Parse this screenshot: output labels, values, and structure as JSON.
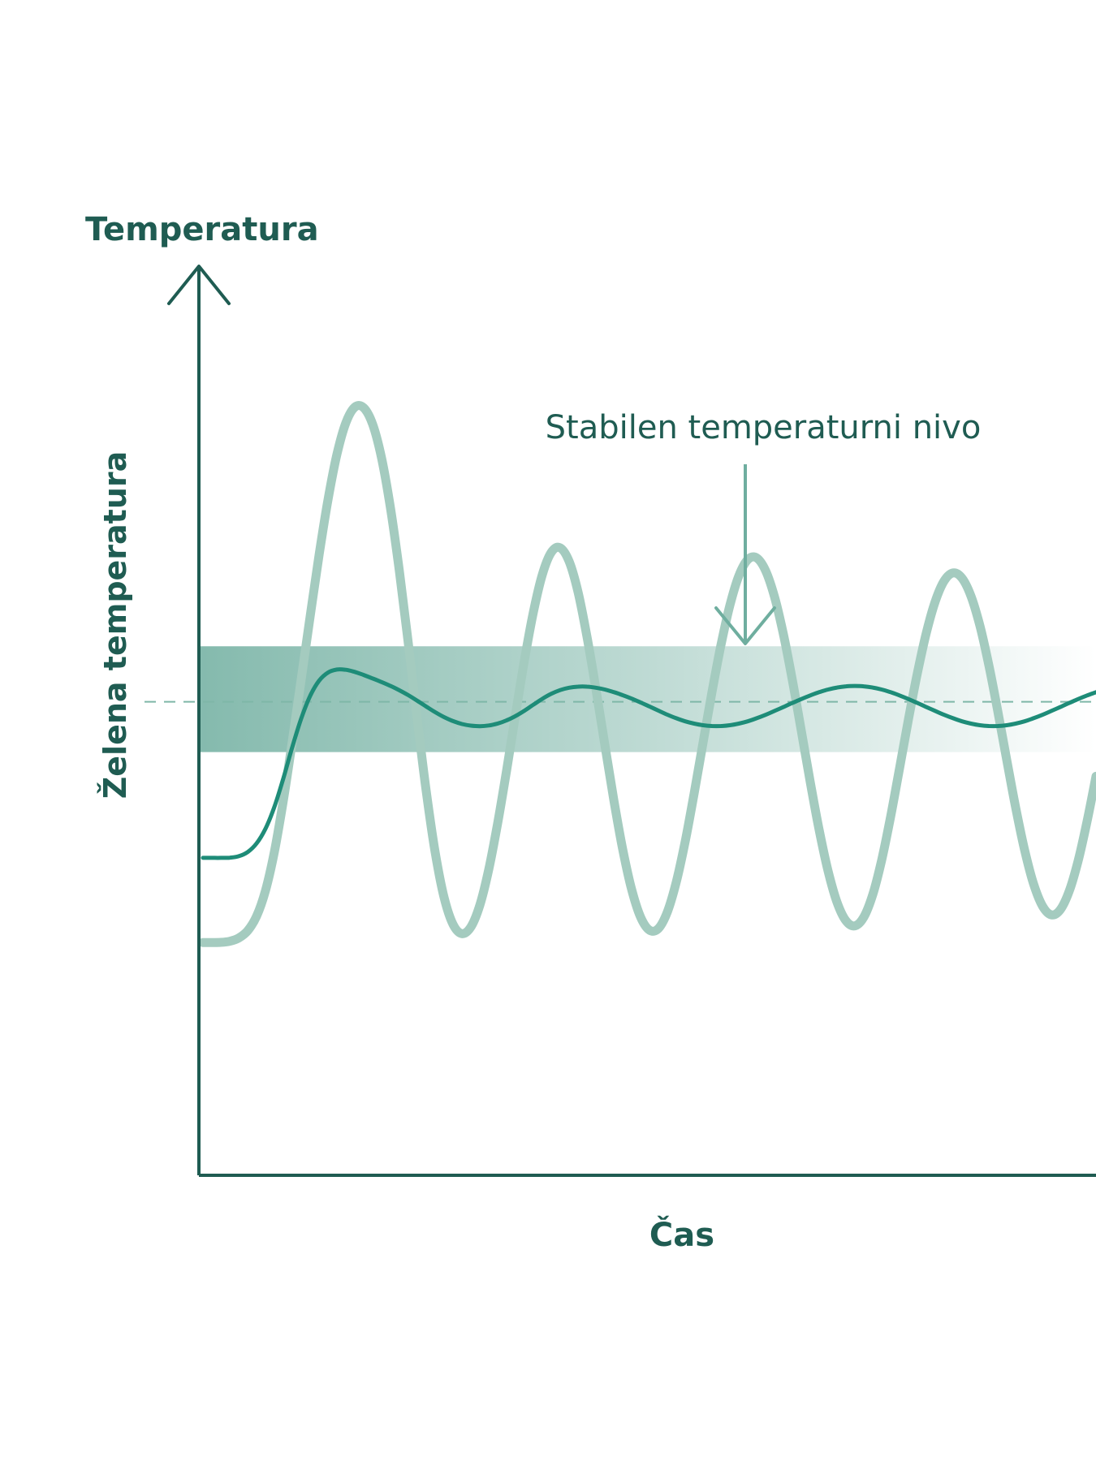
{
  "colors": {
    "axis": "#1f5c52",
    "label": "#1f5c52",
    "primary_line": "#1e8c78",
    "oscillating_line": "#a4cbbf",
    "band": "#6fae9f",
    "target_dash": "#7fb7a8",
    "annotation_arrow": "#6fae9f",
    "background": "#ffffff"
  },
  "chart_data": {
    "type": "line",
    "title": "",
    "ylabel": "Temperatura",
    "xlabel": "Čas",
    "y_reference_label": "Želena temperatura",
    "annotation": {
      "text": "Stabilen temperaturni nivo",
      "arrow_direction": "down"
    },
    "axis_ticks": false,
    "grid": false,
    "legend": "none",
    "x": [
      0,
      1,
      2,
      3,
      4,
      5,
      6,
      7,
      8,
      9,
      10,
      11,
      12,
      13,
      14,
      15,
      16,
      17,
      18,
      19,
      20,
      21,
      22,
      23,
      24,
      25,
      26,
      27,
      28,
      29,
      30,
      31,
      32,
      33,
      34,
      35,
      36,
      37,
      38,
      39,
      40,
      41,
      42,
      43,
      44,
      45,
      46,
      47,
      48,
      49,
      50,
      51,
      52,
      53,
      54,
      55,
      56,
      57,
      58,
      59,
      60,
      61,
      62,
      63,
      64,
      65,
      66,
      67,
      68,
      69,
      70,
      71,
      72,
      73,
      74,
      75,
      76,
      77,
      78,
      79,
      80,
      81,
      82,
      83,
      84,
      85,
      86,
      87,
      88,
      89,
      90,
      91,
      92,
      93,
      94,
      95,
      96,
      97,
      98,
      99,
      100
    ],
    "series": [
      {
        "values": [
          -20.0,
          -20.0,
          -20.0,
          -19.96,
          -19.69,
          -18.9,
          -17.27,
          -14.49,
          -10.35,
          -4.97,
          0.94,
          6.33,
          10.61,
          13.48,
          15.03,
          15.6,
          15.55,
          15.15,
          14.57,
          13.92,
          13.24,
          12.51,
          11.68,
          10.75,
          9.7,
          8.61,
          7.55,
          6.61,
          5.86,
          5.31,
          5.0,
          4.9,
          5.03,
          5.4,
          5.99,
          6.81,
          7.83,
          8.96,
          10.07,
          11.01,
          11.72,
          12.17,
          12.37,
          12.37,
          12.17,
          11.82,
          11.34,
          10.76,
          10.11,
          9.39,
          8.62,
          7.84,
          7.07,
          6.39,
          5.82,
          5.38,
          5.08,
          4.93,
          4.93,
          5.08,
          5.38,
          5.82,
          6.39,
          7.04,
          7.77,
          8.52,
          9.28,
          10.02,
          10.71,
          11.32,
          11.83,
          12.2,
          12.43,
          12.5,
          12.43,
          12.2,
          11.83,
          11.32,
          10.71,
          10.02,
          9.28,
          8.52,
          7.77,
          7.04,
          6.39,
          5.82,
          5.38,
          5.08,
          4.93,
          4.93,
          5.08,
          5.38,
          5.82,
          6.39,
          7.04,
          7.77,
          8.52,
          9.28,
          10.02,
          10.71,
          11.32
        ]
      },
      {
        "values": [
          -36.0,
          -36.0,
          -35.97,
          -35.77,
          -35.15,
          -33.78,
          -31.04,
          -26.19,
          -18.82,
          -9.15,
          1.98,
          13.74,
          25.62,
          37.23,
          47.69,
          56.27,
          62.24,
          65.2,
          65.08,
          61.97,
          55.58,
          46.1,
          34.14,
          20.46,
          6.14,
          -7.4,
          -18.93,
          -27.48,
          -32.56,
          -34.32,
          -33.06,
          -28.95,
          -22.21,
          -13.45,
          -3.49,
          7.11,
          17.39,
          26.47,
          33.54,
          37.74,
          38.61,
          36.06,
          30.26,
          21.82,
          11.92,
          1.39,
          -9.01,
          -18.37,
          -25.95,
          -31.18,
          -33.66,
          -33.35,
          -30.22,
          -24.57,
          -16.89,
          -7.83,
          1.81,
          11.36,
          20.2,
          27.72,
          33.29,
          36.37,
          36.71,
          34.31,
          29.35,
          22.25,
          13.59,
          4.04,
          -5.65,
          -14.72,
          -22.49,
          -28.38,
          -31.89,
          -32.85,
          -31.2,
          -26.94,
          -20.42,
          -12.23,
          -3.08,
          6.2,
          14.93,
          22.53,
          28.49,
          32.37,
          33.87,
          32.88,
          29.49,
          23.88,
          16.43,
          7.75,
          -1.45,
          -10.45,
          -18.48,
          -24.87,
          -29.07,
          -30.77,
          -29.8,
          -26.29,
          -20.56,
          -13.09,
          -4.58
        ]
      }
    ],
    "xlim": [
      0,
      100
    ],
    "ylim": [
      -80,
      90
    ],
    "target_y": 9.5,
    "band_y": [
      0,
      20
    ]
  }
}
